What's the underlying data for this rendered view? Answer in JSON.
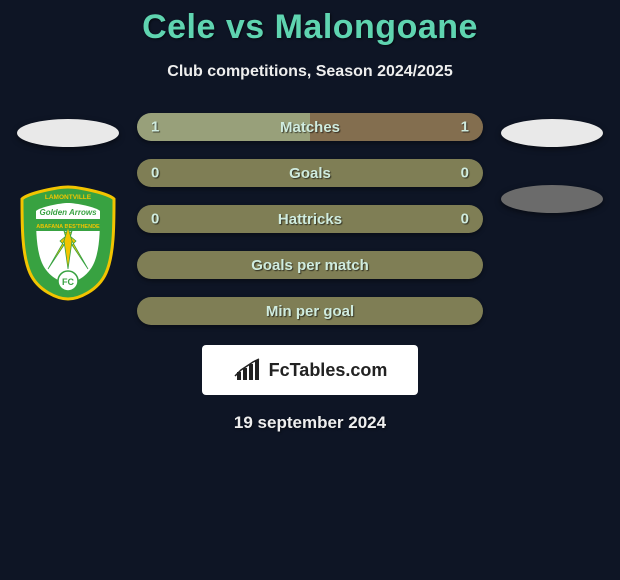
{
  "title": "Cele vs Malongoane",
  "subtitle": "Club competitions, Season 2024/2025",
  "accent_color": "#5fd4b0",
  "background_color": "#0e1525",
  "left_player": {
    "oval_color": "#e9e9e9",
    "badge": {
      "shield_fill": "#38a241",
      "shield_stroke": "#f2c400",
      "inner_fill": "#ffffff",
      "arrow_fill": "#f2c400",
      "top_text": "LAMONTVILLE",
      "mid_text": "Golden Arrows",
      "banner_text": "ABAFANA BES'THENDE",
      "fc_text": "FC"
    }
  },
  "right_player": {
    "ovals": [
      {
        "color": "#e9e9e9"
      },
      {
        "color": "#6b6b6b"
      }
    ]
  },
  "bar_styling": {
    "height": 28,
    "border_radius": 14,
    "gap": 18,
    "split_bg_left": "#98a07a",
    "split_bg_right": "#836e4f",
    "full_bg": "#7f7e55",
    "label_fontsize": 15,
    "label_color": "#d0ecdf"
  },
  "rows": [
    {
      "label": "Matches",
      "left": "1",
      "right": "1",
      "type": "split",
      "split_pct": 50
    },
    {
      "label": "Goals",
      "left": "0",
      "right": "0",
      "type": "full"
    },
    {
      "label": "Hattricks",
      "left": "0",
      "right": "0",
      "type": "full"
    },
    {
      "label": "Goals per match",
      "left": "",
      "right": "",
      "type": "full"
    },
    {
      "label": "Min per goal",
      "left": "",
      "right": "",
      "type": "full"
    }
  ],
  "brand": "FcTables.com",
  "date": "19 september 2024"
}
